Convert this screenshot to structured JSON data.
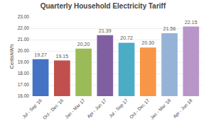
{
  "chart_data": {
    "type": "bar",
    "title": "Quarterly Household Electricity Tariff",
    "ylabel": "Cents/kWh",
    "categories": [
      "Jul - Sep '16",
      "Oct - Dec '16",
      "Jan - Mar 17",
      "Apr - Jun 17",
      "Jul - Sep 17",
      "Oct - Dec 17",
      "Jan - Mar '18",
      "Apr - Jun 18"
    ],
    "values": [
      19.27,
      19.15,
      20.2,
      21.39,
      20.72,
      20.3,
      21.56,
      22.15
    ],
    "value_labels": [
      "19.27",
      "19.15",
      "20.20",
      "21.39",
      "20.72",
      "20.30",
      "21.56",
      "22.15"
    ],
    "colors": [
      "#4472C4",
      "#C0504D",
      "#9BBB59",
      "#7F5FA0",
      "#4BACC6",
      "#F79646",
      "#95B3D7",
      "#B896C8"
    ],
    "ylim": [
      16.0,
      23.0
    ],
    "yticks": [
      {
        "value": 16,
        "label": "16.00"
      },
      {
        "value": 17,
        "label": "17.00"
      },
      {
        "value": 18,
        "label": "18.00"
      },
      {
        "value": 19,
        "label": "19.00"
      },
      {
        "value": 20,
        "label": "20.00"
      },
      {
        "value": 21,
        "label": "21.00"
      },
      {
        "value": 22,
        "label": "22.00"
      },
      {
        "value": 23,
        "label": "23.00"
      }
    ],
    "grid": true,
    "data_labels": true
  }
}
